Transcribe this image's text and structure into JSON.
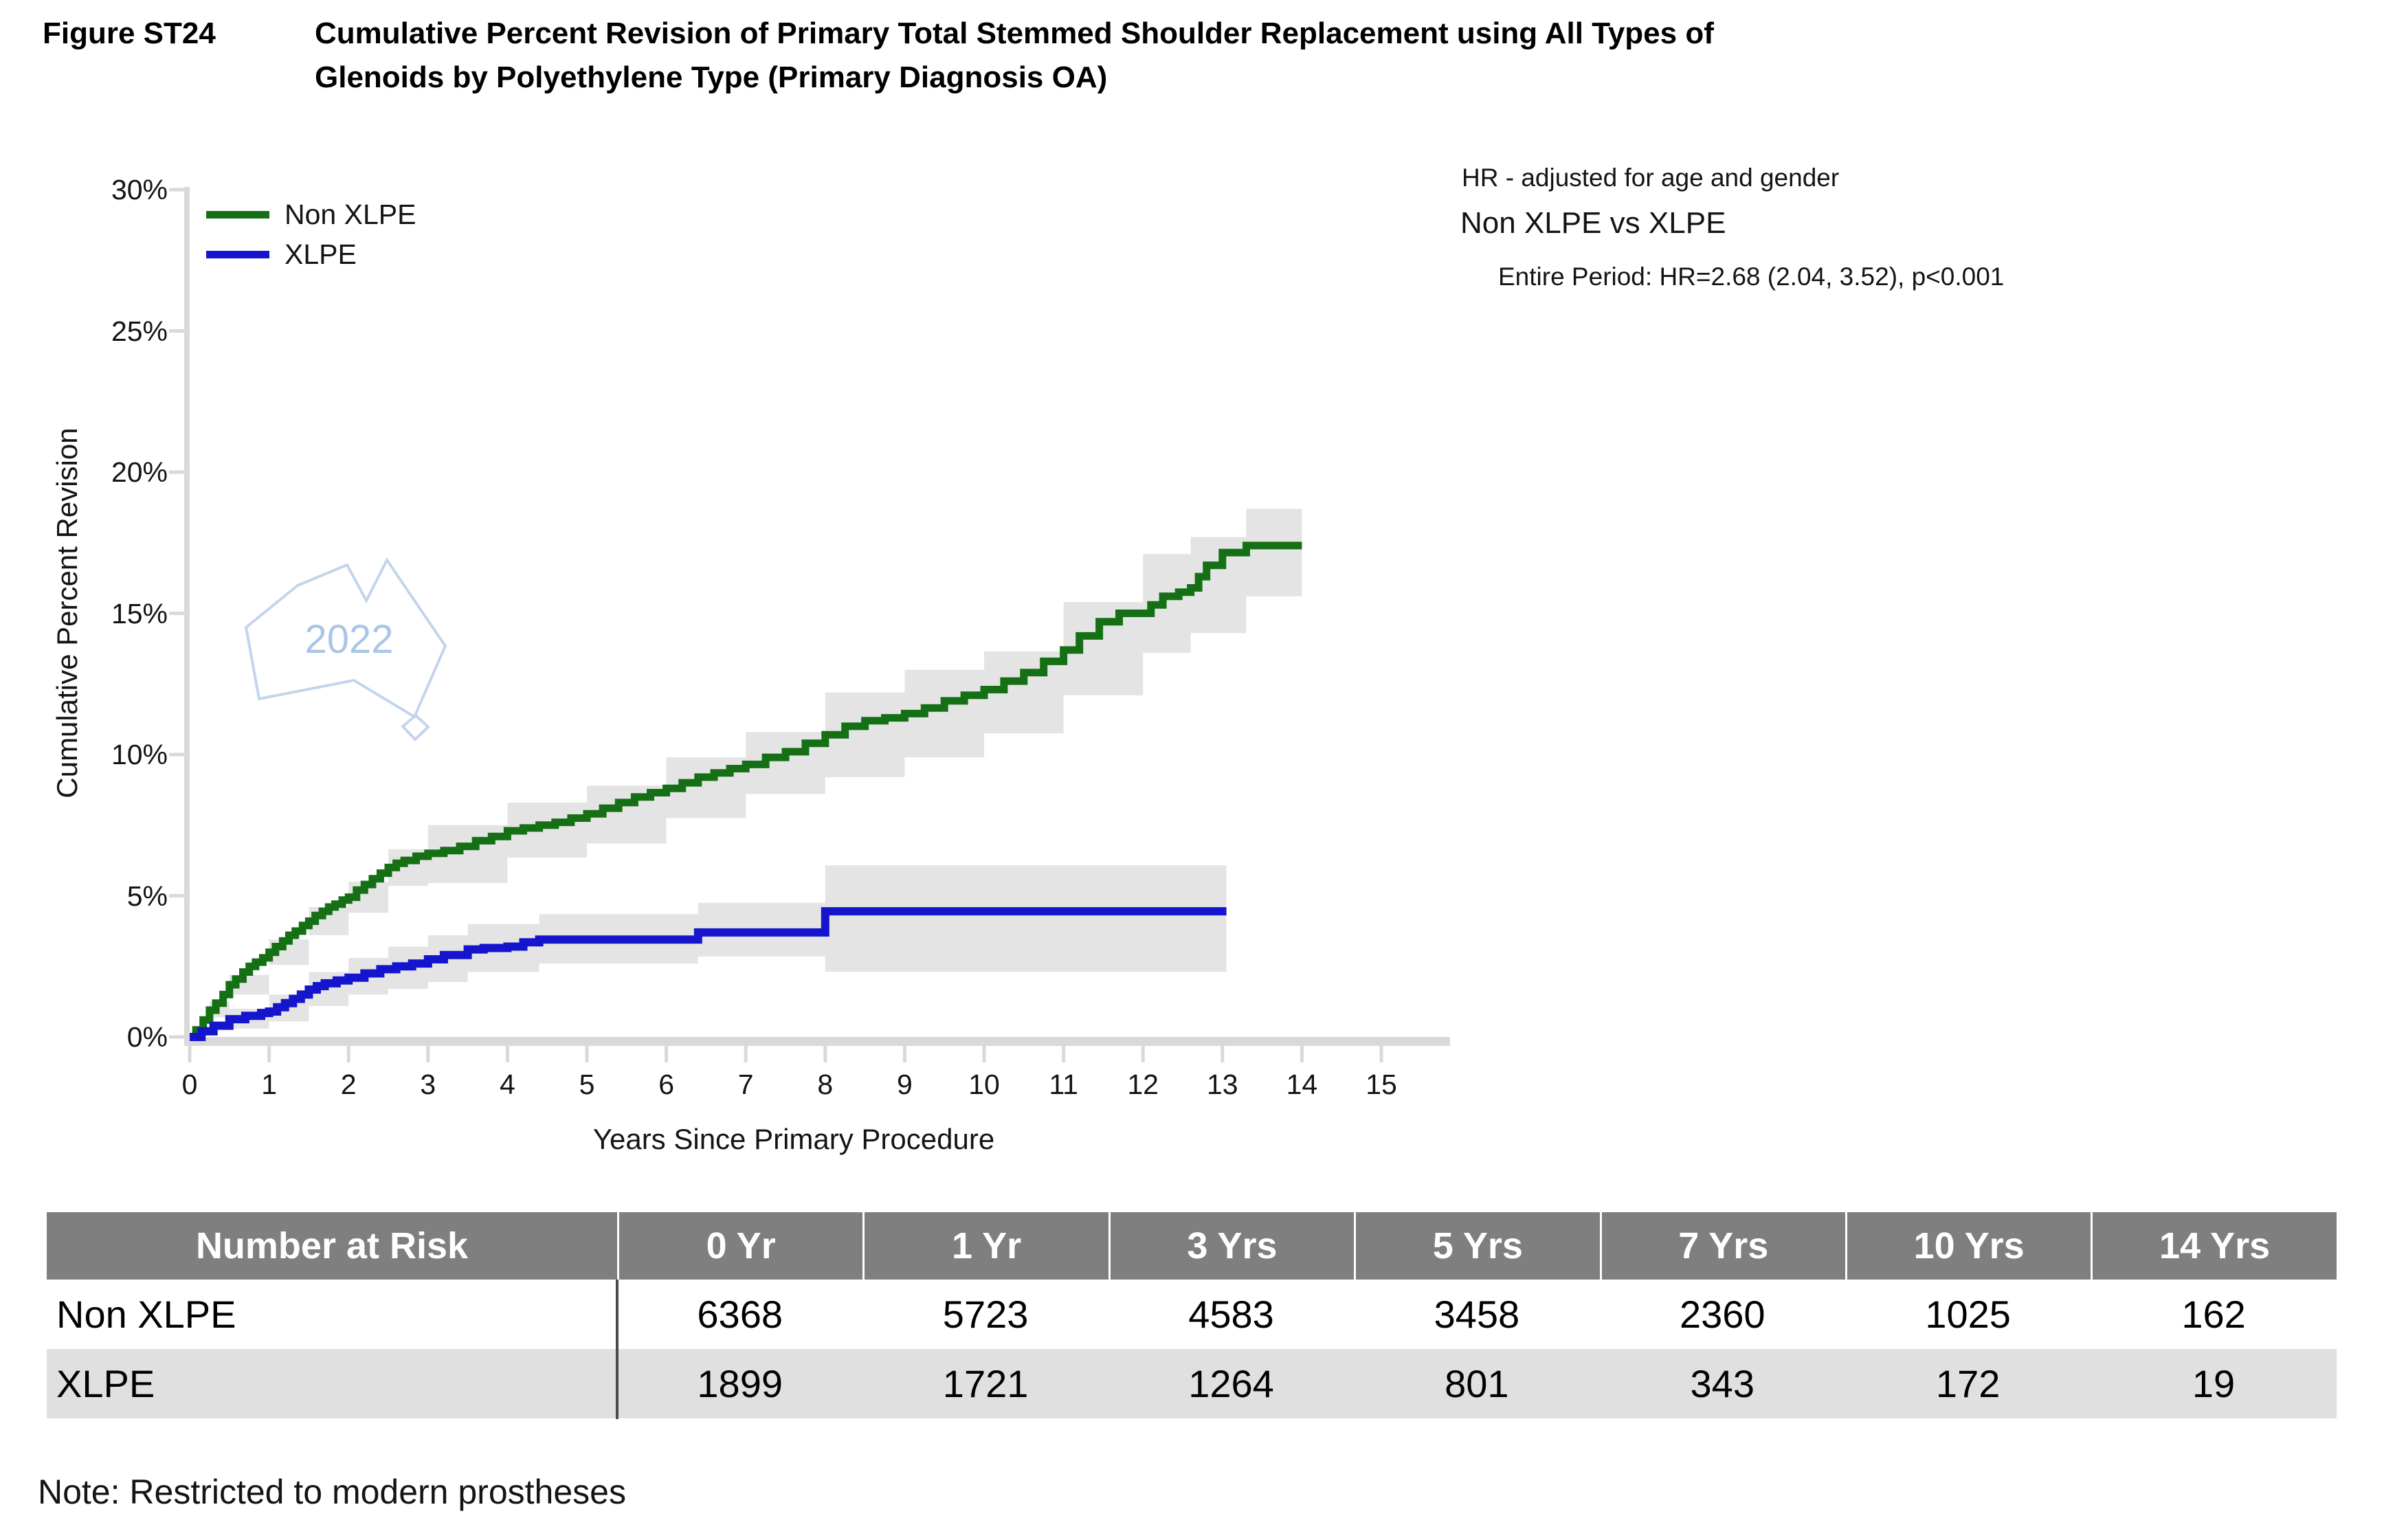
{
  "figure": {
    "label": "Figure ST24",
    "title_line1": "Cumulative Percent Revision of Primary Total Stemmed Shoulder Replacement using All Types of",
    "title_line2": "Glenoids by Polyethylene Type (Primary Diagnosis OA)"
  },
  "annotation": {
    "hr_note": "HR - adjusted for age and gender",
    "comparison": "Non XLPE vs XLPE",
    "result": "Entire Period: HR=2.68 (2.04, 3.52), p<0.001"
  },
  "watermark": {
    "text": "2022",
    "outline_color": "#c3d5ec",
    "text_color": "#a9c6e8"
  },
  "chart_data": {
    "type": "line",
    "title": "Cumulative Percent Revision of Primary Total Stemmed Shoulder Replacement using All Types of Glenoids by Polyethylene Type (Primary Diagnosis OA)",
    "xlabel": "Years Since Primary Procedure",
    "ylabel": "Cumulative Percent Revision",
    "xlim": [
      0,
      15
    ],
    "ylim": [
      0,
      30
    ],
    "grid": false,
    "legend_position": "top-left-inside",
    "x_ticks": [
      0,
      1,
      2,
      3,
      4,
      5,
      6,
      7,
      8,
      9,
      10,
      11,
      12,
      13,
      14,
      15
    ],
    "y_ticks": [
      0,
      5,
      10,
      15,
      20,
      25,
      30
    ],
    "y_tick_labels": [
      "0%",
      "5%",
      "10%",
      "15%",
      "20%",
      "25%",
      "30%"
    ],
    "axis_color": "#d9d9d9",
    "ci_color": "#e4e4e4",
    "series": [
      {
        "name": "Non XLPE",
        "color": "#157015",
        "stroke_width": 11,
        "step_points": [
          [
            0,
            0
          ],
          [
            0.08,
            0.25
          ],
          [
            0.17,
            0.6
          ],
          [
            0.25,
            0.95
          ],
          [
            0.33,
            1.2
          ],
          [
            0.42,
            1.5
          ],
          [
            0.5,
            1.85
          ],
          [
            0.58,
            2.05
          ],
          [
            0.67,
            2.3
          ],
          [
            0.75,
            2.5
          ],
          [
            0.83,
            2.65
          ],
          [
            0.92,
            2.8
          ],
          [
            1,
            3.0
          ],
          [
            1.08,
            3.2
          ],
          [
            1.17,
            3.4
          ],
          [
            1.25,
            3.6
          ],
          [
            1.33,
            3.75
          ],
          [
            1.42,
            3.95
          ],
          [
            1.5,
            4.1
          ],
          [
            1.58,
            4.3
          ],
          [
            1.67,
            4.45
          ],
          [
            1.75,
            4.6
          ],
          [
            1.83,
            4.7
          ],
          [
            1.92,
            4.85
          ],
          [
            2,
            4.95
          ],
          [
            2.1,
            5.2
          ],
          [
            2.2,
            5.4
          ],
          [
            2.3,
            5.6
          ],
          [
            2.4,
            5.8
          ],
          [
            2.5,
            6.0
          ],
          [
            2.6,
            6.15
          ],
          [
            2.7,
            6.25
          ],
          [
            2.85,
            6.4
          ],
          [
            3,
            6.5
          ],
          [
            3.2,
            6.6
          ],
          [
            3.4,
            6.75
          ],
          [
            3.6,
            6.95
          ],
          [
            3.8,
            7.1
          ],
          [
            4,
            7.3
          ],
          [
            4.2,
            7.4
          ],
          [
            4.4,
            7.5
          ],
          [
            4.6,
            7.6
          ],
          [
            4.8,
            7.75
          ],
          [
            5,
            7.9
          ],
          [
            5.2,
            8.1
          ],
          [
            5.4,
            8.3
          ],
          [
            5.6,
            8.5
          ],
          [
            5.8,
            8.65
          ],
          [
            6,
            8.8
          ],
          [
            6.2,
            9.0
          ],
          [
            6.4,
            9.2
          ],
          [
            6.6,
            9.35
          ],
          [
            6.8,
            9.5
          ],
          [
            7,
            9.65
          ],
          [
            7.25,
            9.9
          ],
          [
            7.5,
            10.1
          ],
          [
            7.75,
            10.4
          ],
          [
            8,
            10.7
          ],
          [
            8.25,
            11.0
          ],
          [
            8.5,
            11.2
          ],
          [
            8.75,
            11.3
          ],
          [
            9,
            11.45
          ],
          [
            9.25,
            11.65
          ],
          [
            9.5,
            11.9
          ],
          [
            9.75,
            12.1
          ],
          [
            10,
            12.3
          ],
          [
            10.25,
            12.6
          ],
          [
            10.5,
            12.9
          ],
          [
            10.75,
            13.3
          ],
          [
            11,
            13.7
          ],
          [
            11.2,
            14.2
          ],
          [
            11.45,
            14.7
          ],
          [
            11.7,
            15.0
          ],
          [
            12.1,
            15.3
          ],
          [
            12.25,
            15.6
          ],
          [
            12.45,
            15.75
          ],
          [
            12.6,
            15.9
          ],
          [
            12.7,
            16.3
          ],
          [
            12.8,
            16.7
          ],
          [
            13,
            17.15
          ],
          [
            13.3,
            17.4
          ],
          [
            14,
            17.4
          ]
        ],
        "ci_band": [
          [
            0,
            0,
            0
          ],
          [
            0.25,
            0.7,
            1.25
          ],
          [
            0.5,
            1.5,
            2.2
          ],
          [
            1,
            2.55,
            3.45
          ],
          [
            1.5,
            3.6,
            4.6
          ],
          [
            2,
            4.4,
            5.5
          ],
          [
            2.5,
            5.35,
            6.65
          ],
          [
            3,
            5.45,
            7.5
          ],
          [
            4,
            6.35,
            8.3
          ],
          [
            5,
            6.85,
            8.9
          ],
          [
            6,
            7.75,
            9.9
          ],
          [
            7,
            8.6,
            10.8
          ],
          [
            8,
            9.2,
            12.2
          ],
          [
            9,
            9.9,
            13.0
          ],
          [
            10,
            10.75,
            13.65
          ],
          [
            11,
            12.1,
            15.4
          ],
          [
            12,
            13.6,
            17.1
          ],
          [
            12.6,
            14.3,
            17.7
          ],
          [
            13.3,
            15.6,
            18.7
          ],
          [
            14,
            15.6,
            18.7
          ]
        ]
      },
      {
        "name": "XLPE",
        "color": "#1515cd",
        "stroke_width": 12,
        "step_points": [
          [
            0,
            0
          ],
          [
            0.15,
            0.2
          ],
          [
            0.3,
            0.4
          ],
          [
            0.5,
            0.63
          ],
          [
            0.7,
            0.75
          ],
          [
            0.9,
            0.85
          ],
          [
            1,
            0.9
          ],
          [
            1.1,
            1.05
          ],
          [
            1.2,
            1.2
          ],
          [
            1.3,
            1.35
          ],
          [
            1.4,
            1.5
          ],
          [
            1.5,
            1.68
          ],
          [
            1.6,
            1.8
          ],
          [
            1.7,
            1.9
          ],
          [
            1.85,
            2.0
          ],
          [
            2,
            2.1
          ],
          [
            2.2,
            2.25
          ],
          [
            2.4,
            2.4
          ],
          [
            2.6,
            2.5
          ],
          [
            2.8,
            2.6
          ],
          [
            3,
            2.75
          ],
          [
            3.2,
            2.9
          ],
          [
            3.5,
            3.1
          ],
          [
            3.7,
            3.15
          ],
          [
            4,
            3.2
          ],
          [
            4.2,
            3.35
          ],
          [
            4.4,
            3.45
          ],
          [
            6.4,
            3.7
          ],
          [
            8,
            4.45
          ],
          [
            13.05,
            4.45
          ]
        ],
        "ci_band": [
          [
            0,
            0,
            0
          ],
          [
            0.5,
            0.3,
            1.0
          ],
          [
            1,
            0.55,
            1.5
          ],
          [
            1.5,
            1.1,
            2.3
          ],
          [
            2,
            1.5,
            2.8
          ],
          [
            2.5,
            1.7,
            3.2
          ],
          [
            3,
            1.95,
            3.6
          ],
          [
            3.5,
            2.3,
            4.0
          ],
          [
            4.4,
            2.6,
            4.35
          ],
          [
            6.4,
            2.85,
            4.75
          ],
          [
            8,
            2.31,
            6.08
          ],
          [
            13.05,
            2.31,
            6.08
          ]
        ]
      }
    ]
  },
  "risk_table": {
    "header": [
      "Number at Risk",
      "0 Yr",
      "1 Yr",
      "3 Yrs",
      "5 Yrs",
      "7 Yrs",
      "10 Yrs",
      "14 Yrs"
    ],
    "rows": [
      {
        "label": "Non XLPE",
        "values": [
          "6368",
          "5723",
          "4583",
          "3458",
          "2360",
          "1025",
          "162"
        ]
      },
      {
        "label": "XLPE",
        "values": [
          "1899",
          "1721",
          "1264",
          "801",
          "343",
          "172",
          "19"
        ]
      }
    ],
    "header_bg": "#7f7f7f",
    "alt_row_bg": "#e0e0e0"
  },
  "note": "Note: Restricted to modern prostheses"
}
